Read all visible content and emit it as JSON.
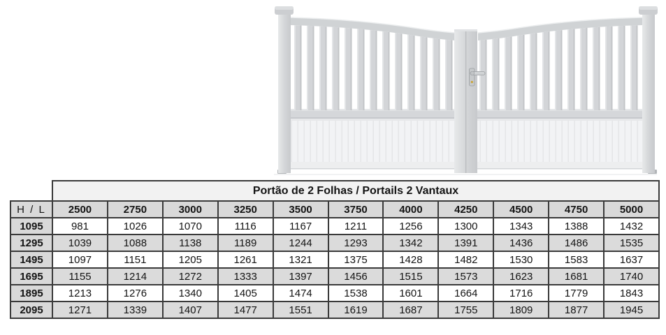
{
  "page": {
    "background_color": "#ffffff"
  },
  "gate_image": {
    "name": "white-double-leaf-gate-illustration"
  },
  "chart_data": {
    "type": "table",
    "title": "Portão de 2 Folhas / Portails 2 Vantaux",
    "row_header_label": "H / L",
    "column_headers": [
      "2500",
      "2750",
      "3000",
      "3250",
      "3500",
      "3750",
      "4000",
      "4250",
      "4500",
      "4750",
      "5000"
    ],
    "row_headers": [
      "1095",
      "1295",
      "1495",
      "1695",
      "1895",
      "2095"
    ],
    "cells": [
      [
        981,
        1026,
        1070,
        1116,
        1167,
        1211,
        1256,
        1300,
        1343,
        1388,
        1432
      ],
      [
        1039,
        1088,
        1138,
        1189,
        1244,
        1293,
        1342,
        1391,
        1436,
        1486,
        1535
      ],
      [
        1097,
        1151,
        1205,
        1261,
        1321,
        1375,
        1428,
        1482,
        1530,
        1583,
        1637
      ],
      [
        1155,
        1214,
        1272,
        1333,
        1397,
        1456,
        1515,
        1573,
        1623,
        1681,
        1740
      ],
      [
        1213,
        1276,
        1340,
        1405,
        1474,
        1538,
        1601,
        1664,
        1716,
        1779,
        1843
      ],
      [
        1271,
        1339,
        1407,
        1477,
        1551,
        1619,
        1687,
        1755,
        1809,
        1877,
        1945
      ]
    ]
  },
  "colors": {
    "table_border": "#3a3a3a",
    "header_bg": "#d9d9d9",
    "title_bg": "#f2f2f2",
    "alt_row_bg": "#dbdbdb",
    "gate_gray": "#d3d5d8"
  }
}
